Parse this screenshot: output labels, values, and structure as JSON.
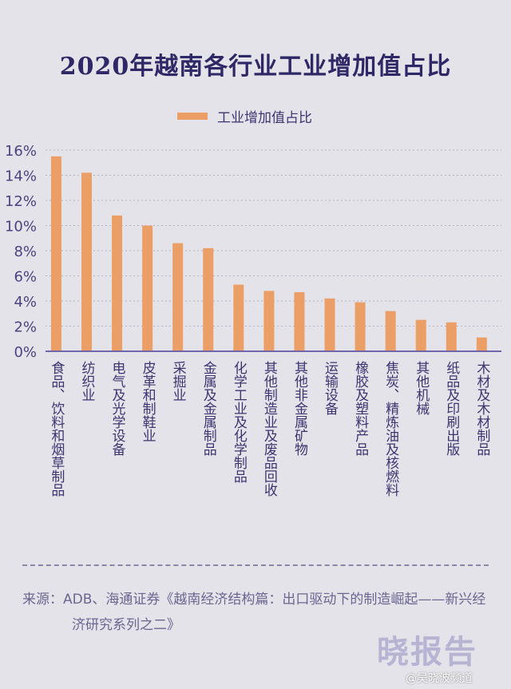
{
  "chart_data": {
    "type": "bar",
    "title": "2020年越南各行业工业增加值占比",
    "legend": [
      "工业增加值占比"
    ],
    "legend_position": "top-center",
    "categories": [
      "食品、饮料和烟草制品",
      "纺织业",
      "电气及光学设备",
      "皮革和制鞋业",
      "采掘业",
      "金属及金属制品",
      "化学工业及化学制品",
      "其他制造业及废品回收",
      "其他非金属矿物",
      "运输设备",
      "橡胶及塑料产品",
      "焦炭、精炼油及核燃料",
      "其他机械",
      "纸品及印刷出版",
      "木材及木材制品"
    ],
    "values": [
      15.5,
      14.2,
      10.8,
      10.0,
      8.6,
      8.2,
      5.3,
      4.8,
      4.7,
      4.2,
      3.9,
      3.2,
      2.5,
      2.3,
      1.1
    ],
    "ylim": [
      0,
      16
    ],
    "yticks": [
      "0%",
      "2%",
      "4%",
      "6%",
      "8%",
      "10%",
      "12%",
      "14%",
      "16%"
    ],
    "grid": true,
    "colors": {
      "bar": "#eb9f66",
      "axis": "#6e66a8"
    }
  },
  "source": "来源：ADB、海通证券《越南经济结构篇：出口驱动下的制造崛起——新兴经济研究系列之二》",
  "watermark": "晓报告",
  "credit": "@吴晓波频道"
}
